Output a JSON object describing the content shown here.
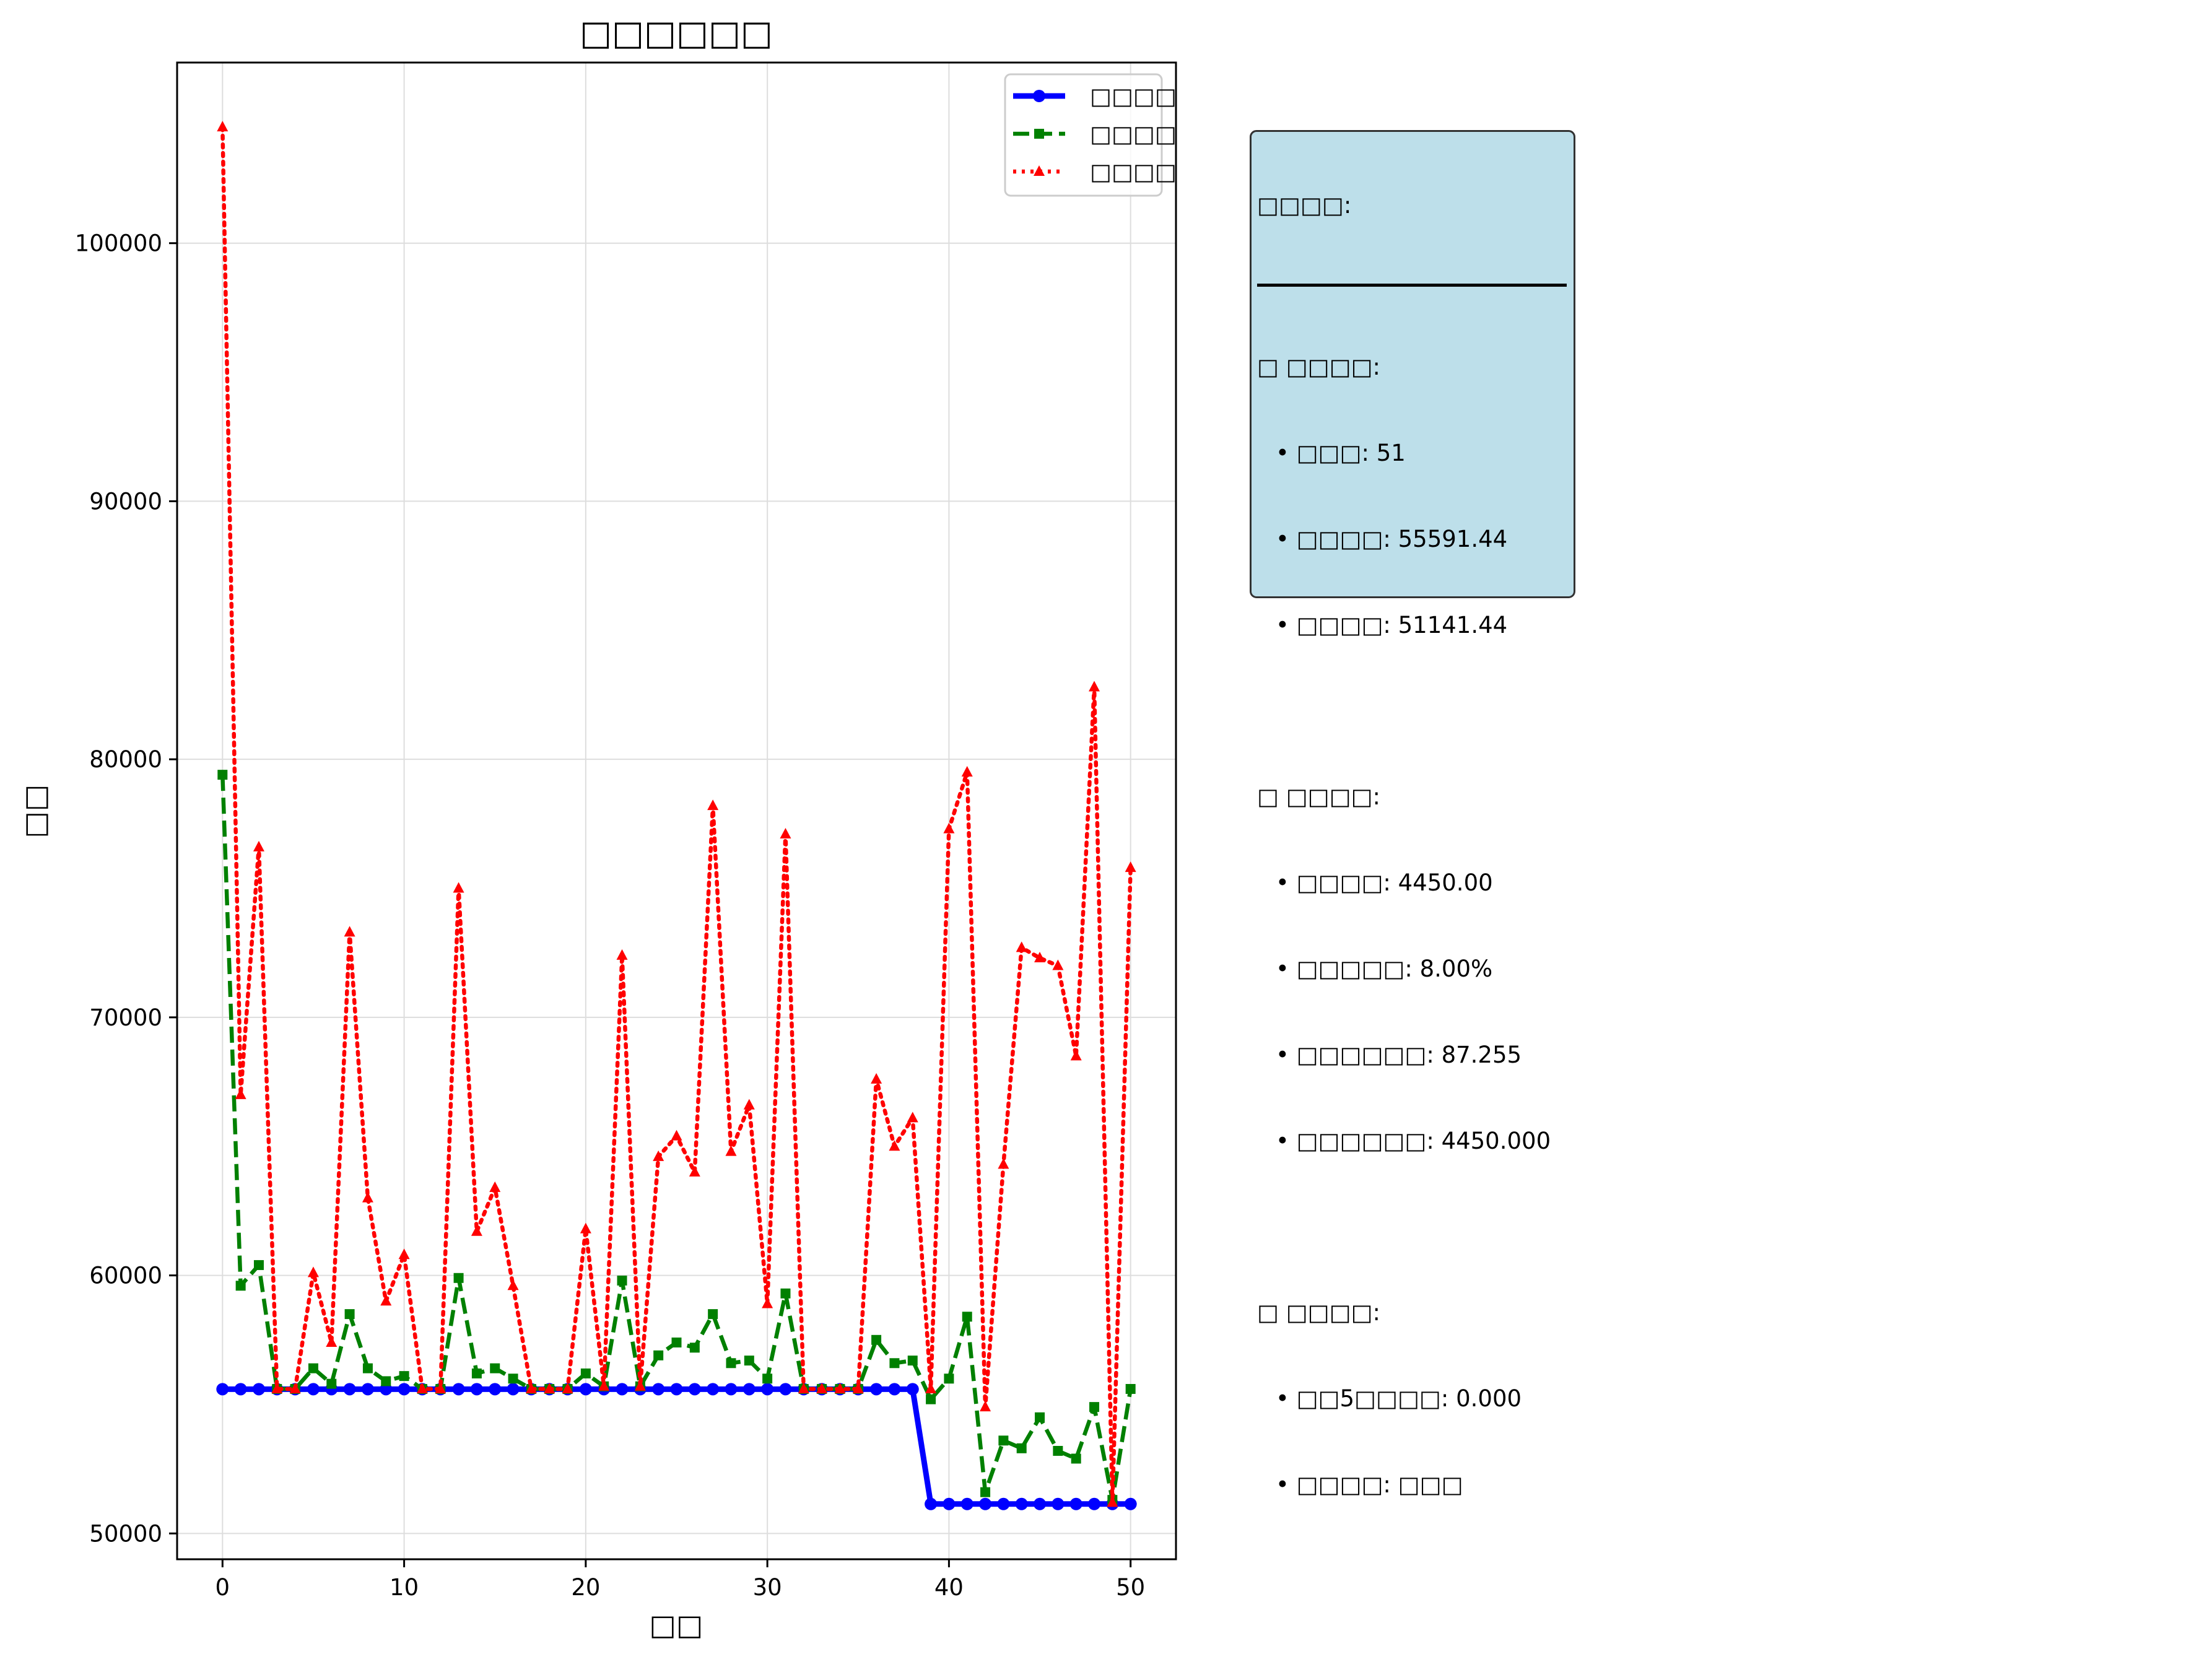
{
  "chart_data": {
    "type": "line",
    "title": "□□□□□□",
    "xlabel": "□□",
    "ylabel": "□□",
    "xlim": [
      -2.5,
      52.5
    ],
    "ylim": [
      49000,
      107000
    ],
    "xticks": [
      0,
      10,
      20,
      30,
      40,
      50
    ],
    "yticks": [
      50000,
      60000,
      70000,
      80000,
      90000,
      100000
    ],
    "grid": true,
    "legend_position": "top-right",
    "x": [
      0,
      1,
      2,
      3,
      4,
      5,
      6,
      7,
      8,
      9,
      10,
      11,
      12,
      13,
      14,
      15,
      16,
      17,
      18,
      19,
      20,
      21,
      22,
      23,
      24,
      25,
      26,
      27,
      28,
      29,
      30,
      31,
      32,
      33,
      34,
      35,
      36,
      37,
      38,
      39,
      40,
      41,
      42,
      43,
      44,
      45,
      46,
      47,
      48,
      49,
      50
    ],
    "series": [
      {
        "name": "□□□□",
        "color": "#0000ff",
        "style": "solid",
        "marker": "circle",
        "values": [
          55591,
          55591,
          55591,
          55591,
          55591,
          55591,
          55591,
          55591,
          55591,
          55591,
          55591,
          55591,
          55591,
          55591,
          55591,
          55591,
          55591,
          55591,
          55591,
          55591,
          55591,
          55591,
          55591,
          55591,
          55591,
          55591,
          55591,
          55591,
          55591,
          55591,
          55591,
          55591,
          55591,
          55591,
          55591,
          55591,
          55591,
          55591,
          55591,
          51141,
          51141,
          51141,
          51141,
          51141,
          51141,
          51141,
          51141,
          51141,
          51141,
          51141,
          51141
        ]
      },
      {
        "name": "□□□□",
        "color": "#008000",
        "style": "dashed",
        "marker": "square",
        "values": [
          79400,
          59600,
          60400,
          55600,
          55600,
          56400,
          55800,
          58500,
          56400,
          55900,
          56100,
          55600,
          55600,
          59900,
          56200,
          56400,
          56000,
          55600,
          55600,
          55600,
          56200,
          55700,
          59800,
          55700,
          56900,
          57400,
          57200,
          58500,
          56600,
          56700,
          56000,
          59300,
          55600,
          55600,
          55600,
          55600,
          57500,
          56600,
          56700,
          55200,
          56000,
          58400,
          51600,
          53600,
          53300,
          54500,
          53200,
          52900,
          54900,
          51300,
          55600
        ]
      },
      {
        "name": "□□□□",
        "color": "#ff0000",
        "style": "dotted",
        "marker": "triangle",
        "values": [
          104500,
          67000,
          76600,
          55600,
          55600,
          60100,
          57400,
          73300,
          63000,
          59000,
          60800,
          55600,
          55600,
          75000,
          61700,
          63400,
          59600,
          55600,
          55600,
          55600,
          61800,
          55700,
          72400,
          55700,
          64600,
          65400,
          64000,
          78200,
          64800,
          66600,
          58900,
          77100,
          55600,
          55600,
          55600,
          55600,
          67600,
          65000,
          66100,
          55600,
          77300,
          79500,
          54900,
          64300,
          72700,
          72300,
          72000,
          68500,
          82800,
          51200,
          75800
        ]
      }
    ]
  },
  "stats": {
    "title": "□□□□:",
    "section1_header": "□ □□□□:",
    "section1_items": [
      "• □□□: 51",
      "• □□□□: 55591.44",
      "• □□□□: 51141.44"
    ],
    "section2_header": "□ □□□□:",
    "section2_items": [
      "• □□□□: 4450.00",
      "• □□□□□: 8.00%",
      "• □□□□□□: 87.255",
      "• □□□□□□: 4450.000"
    ],
    "section3_header": "□ □□□□:",
    "section3_items": [
      "• □□5□□□□: 0.000",
      "• □□□□: □□□"
    ]
  }
}
